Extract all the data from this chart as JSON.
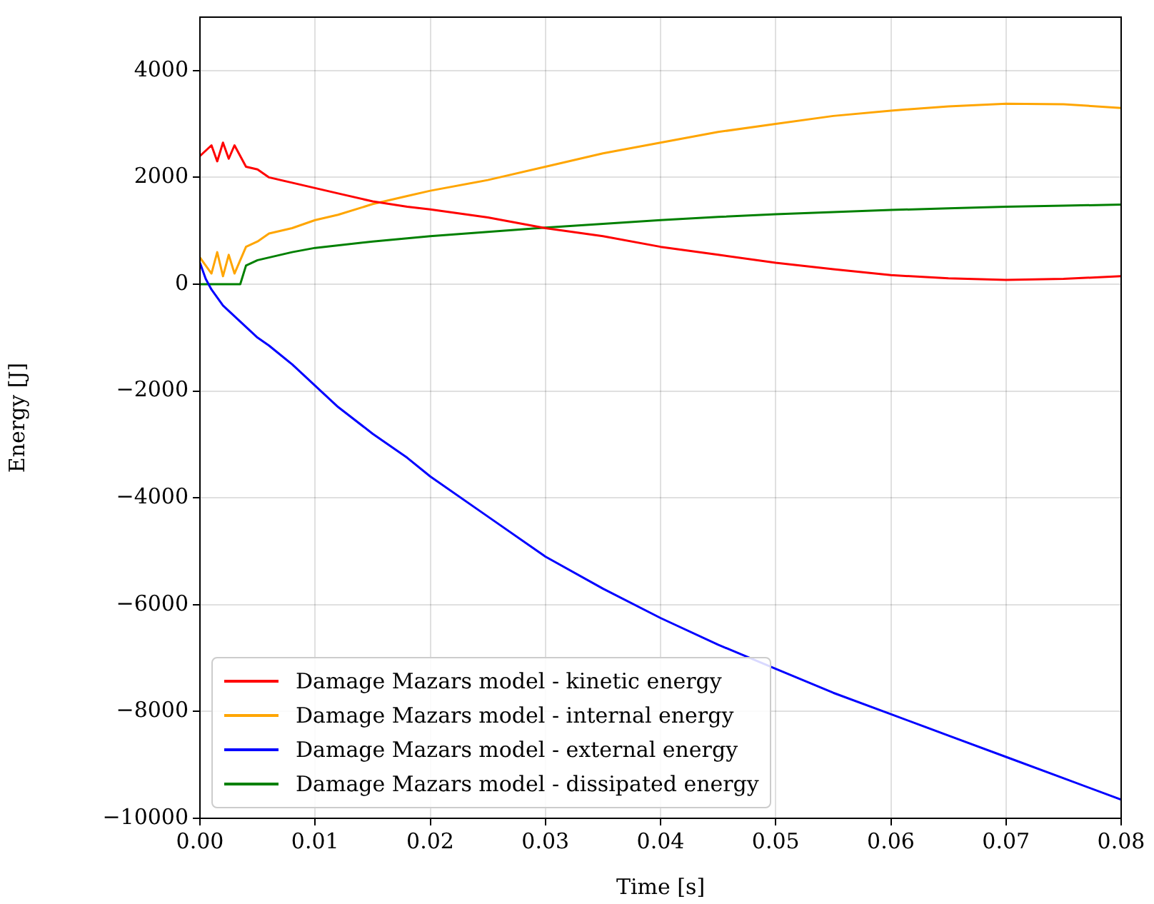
{
  "chart_data": {
    "type": "line",
    "xlabel": "Time [s]",
    "ylabel": "Energy [J]",
    "xlim": [
      0,
      0.08
    ],
    "ylim": [
      -10000,
      5000
    ],
    "xticks": [
      {
        "value": 0,
        "label": "0.00"
      },
      {
        "value": 0.01,
        "label": "0.01"
      },
      {
        "value": 0.02,
        "label": "0.02"
      },
      {
        "value": 0.03,
        "label": "0.03"
      },
      {
        "value": 0.04,
        "label": "0.04"
      },
      {
        "value": 0.05,
        "label": "0.05"
      },
      {
        "value": 0.06,
        "label": "0.06"
      },
      {
        "value": 0.07,
        "label": "0.07"
      },
      {
        "value": 0.08,
        "label": "0.08"
      }
    ],
    "yticks": [
      {
        "value": -10000,
        "label": "−10000"
      },
      {
        "value": -8000,
        "label": "−8000"
      },
      {
        "value": -6000,
        "label": "−6000"
      },
      {
        "value": -4000,
        "label": "−4000"
      },
      {
        "value": -2000,
        "label": "−2000"
      },
      0,
      2000,
      4000
    ],
    "grid": true,
    "legend": "bottom left",
    "line_style": "solid",
    "marker": "none",
    "series": [
      {
        "name": "Damage Mazars model - kinetic energy",
        "color": "#ff0000",
        "x": [
          0,
          0.001,
          0.0015,
          0.002,
          0.0025,
          0.003,
          0.004,
          0.005,
          0.006,
          0.008,
          0.01,
          0.012,
          0.015,
          0.018,
          0.02,
          0.025,
          0.03,
          0.035,
          0.04,
          0.045,
          0.05,
          0.055,
          0.06,
          0.065,
          0.07,
          0.075,
          0.08
        ],
        "values": [
          2400,
          2600,
          2300,
          2650,
          2350,
          2600,
          2200,
          2150,
          2000,
          1900,
          1800,
          1700,
          1550,
          1450,
          1400,
          1250,
          1050,
          900,
          700,
          550,
          400,
          280,
          170,
          110,
          80,
          100,
          150
        ]
      },
      {
        "name": "Damage Mazars model - internal energy",
        "color": "#ffa500",
        "x": [
          0,
          0.001,
          0.0015,
          0.002,
          0.0025,
          0.003,
          0.004,
          0.005,
          0.006,
          0.008,
          0.01,
          0.012,
          0.015,
          0.018,
          0.02,
          0.025,
          0.03,
          0.035,
          0.04,
          0.045,
          0.05,
          0.055,
          0.06,
          0.065,
          0.07,
          0.075,
          0.08
        ],
        "values": [
          500,
          200,
          600,
          150,
          550,
          200,
          700,
          800,
          950,
          1050,
          1200,
          1300,
          1500,
          1650,
          1750,
          1950,
          2200,
          2450,
          2650,
          2850,
          3000,
          3150,
          3250,
          3330,
          3380,
          3370,
          3300
        ]
      },
      {
        "name": "Damage Mazars model - external energy",
        "color": "#0000ff",
        "x": [
          0,
          0.0005,
          0.001,
          0.002,
          0.003,
          0.004,
          0.005,
          0.006,
          0.008,
          0.01,
          0.012,
          0.015,
          0.018,
          0.02,
          0.025,
          0.03,
          0.035,
          0.04,
          0.045,
          0.05,
          0.055,
          0.06,
          0.065,
          0.07,
          0.075,
          0.08
        ],
        "values": [
          400,
          100,
          -100,
          -400,
          -600,
          -800,
          -1000,
          -1150,
          -1500,
          -1900,
          -2300,
          -2800,
          -3250,
          -3600,
          -4350,
          -5100,
          -5700,
          -6250,
          -6750,
          -7200,
          -7650,
          -8050,
          -8450,
          -8850,
          -9250,
          -9650
        ]
      },
      {
        "name": "Damage Mazars model - dissipated energy",
        "color": "#008000",
        "x": [
          0,
          0.0035,
          0.004,
          0.005,
          0.007,
          0.008,
          0.01,
          0.015,
          0.02,
          0.025,
          0.03,
          0.035,
          0.04,
          0.045,
          0.05,
          0.055,
          0.06,
          0.065,
          0.07,
          0.075,
          0.08
        ],
        "values": [
          0,
          0,
          350,
          450,
          550,
          600,
          680,
          800,
          900,
          980,
          1060,
          1130,
          1200,
          1260,
          1310,
          1350,
          1390,
          1420,
          1450,
          1470,
          1490
        ]
      }
    ]
  }
}
